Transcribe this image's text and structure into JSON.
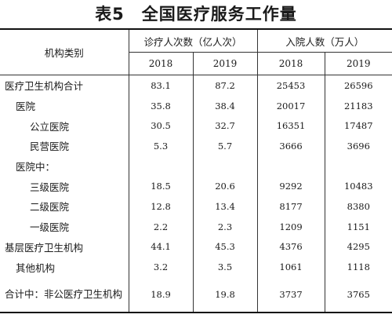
{
  "title": "表5　全国医疗服务工作量",
  "header": {
    "category": "机构类别",
    "visits_group": "诊疗人次数（亿人次）",
    "admissions_group": "入院人数（万人）",
    "years": [
      "2018",
      "2019",
      "2018",
      "2019"
    ]
  },
  "rows": [
    {
      "label": "医疗卫生机构合计",
      "values": [
        "83.1",
        "87.2",
        "25453",
        "26596"
      ]
    },
    {
      "label": "医院",
      "values": [
        "35.8",
        "38.4",
        "20017",
        "21183"
      ]
    },
    {
      "label": "公立医院",
      "values": [
        "30.5",
        "32.7",
        "16351",
        "17487"
      ]
    },
    {
      "label": "民营医院",
      "values": [
        "5.3",
        "5.7",
        "3666",
        "3696"
      ]
    },
    {
      "label": "医院中：",
      "values": [
        "",
        "",
        "",
        ""
      ]
    },
    {
      "label": "三级医院",
      "values": [
        "18.5",
        "20.6",
        "9292",
        "10483"
      ]
    },
    {
      "label": "二级医院",
      "values": [
        "12.8",
        "13.4",
        "8177",
        "8380"
      ]
    },
    {
      "label": "一级医院",
      "values": [
        "2.2",
        "2.3",
        "1209",
        "1151"
      ]
    },
    {
      "label": "基层医疗卫生机构",
      "values": [
        "44.1",
        "45.3",
        "4376",
        "4295"
      ]
    },
    {
      "label": "其他机构",
      "values": [
        "3.2",
        "3.5",
        "1061",
        "1118"
      ]
    },
    {
      "label": "合计中：非公医疗卫生机构",
      "values": [
        "18.9",
        "19.8",
        "3737",
        "3765"
      ]
    }
  ]
}
